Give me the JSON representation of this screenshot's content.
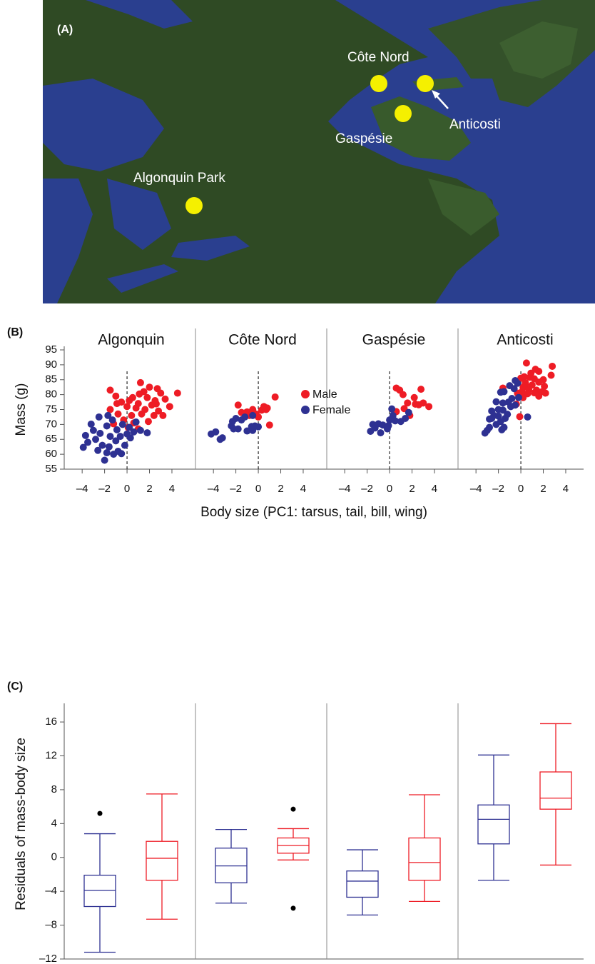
{
  "map": {
    "panel_label": "(A)",
    "sites": [
      {
        "label": "Côte Nord"
      },
      {
        "label": "Anticosti"
      },
      {
        "label": "Gaspésie"
      },
      {
        "label": "Algonquin Park"
      }
    ]
  },
  "chart_data": [
    {
      "type": "scatter",
      "panel_label": "(B)",
      "ylabel": "Mass (g)",
      "xlabel": "Body size (PC1: tarsus, tail, bill, wing)",
      "ylim": [
        55,
        95
      ],
      "yticks": [
        55,
        60,
        65,
        70,
        75,
        80,
        85,
        90,
        95
      ],
      "xlim": [
        -5.6,
        6.1
      ],
      "xticks": [
        {
          "value": -4,
          "label": "–4"
        },
        {
          "value": -2,
          "label": "–2"
        },
        0,
        2,
        4
      ],
      "ref_x": 0,
      "series": [
        {
          "name": "Male",
          "color": "#ee1c25"
        },
        {
          "name": "Female",
          "color": "#2e3192"
        }
      ],
      "facets": [
        {
          "title": "Algonquin",
          "groups": [
            {
              "x": [
                1.2,
                2.0,
                2.7,
                1.5,
                3.0,
                4.5,
                -1.5,
                -1,
                0.5,
                1.8,
                2.5,
                3.4,
                -0.5,
                0.2,
                1.0,
                2.2,
                3.8,
                -1.5,
                0,
                0.8,
                1.6,
                2.8,
                -0.8,
                0.4,
                1.3,
                2.4,
                3.2,
                -0.3,
                0.6,
                1.9,
                -1.2,
                0.1,
                1.0,
                2.6,
                1.1,
                -0.9
              ],
              "values": [
                84,
                82.5,
                82,
                81,
                80.5,
                80.5,
                81.5,
                79.5,
                79,
                79,
                78,
                78.5,
                77.5,
                78,
                77,
                76.5,
                76,
                75,
                76,
                75.5,
                75,
                74.5,
                73.5,
                73,
                73.5,
                73,
                73,
                71.5,
                70.5,
                71,
                70.2,
                69,
                68.5,
                76.9,
                80.2,
                77
              ]
            },
            {
              "x": [
                -3.9,
                -3.5,
                -3.7,
                -3.0,
                -2.5,
                -2.8,
                -2.2,
                -2.0,
                -1.8,
                -1.6,
                -1.2,
                -0.8,
                -0.5,
                -2.4,
                -1.8,
                -1.5,
                -1.0,
                -0.6,
                -0.2,
                0.3,
                0.6,
                1.2,
                1.8,
                -1.3,
                -0.4,
                0.2,
                0.8,
                -1.7,
                -0.9,
                -2.6,
                -3.2,
                0.0
              ],
              "values": [
                62.3,
                64,
                66.3,
                68,
                72.5,
                65,
                63,
                58,
                60.5,
                62.5,
                60,
                61,
                60.2,
                67,
                69.5,
                66,
                64.5,
                66,
                63,
                65.5,
                67.5,
                68,
                67.2,
                71.5,
                70,
                69,
                70.8,
                73,
                68.2,
                61.3,
                70.1,
                66.8
              ]
            }
          ]
        },
        {
          "title": "Côte Nord",
          "groups": [
            {
              "x": [
                -1.8,
                -1.5,
                -1.0,
                -0.8,
                -0.5,
                -0.2,
                0.3,
                0.5,
                0.8,
                0.7,
                1.5,
                1.0,
                0.0,
                -1.2
              ],
              "values": [
                76.5,
                74,
                74.2,
                73,
                75,
                73.5,
                74.8,
                76,
                75.5,
                75,
                79.2,
                69.8,
                72.5,
                73.8
              ]
            },
            {
              "x": [
                -4.2,
                -3.8,
                -3.2,
                -3.4,
                -2.4,
                -2.2,
                -1.8,
                -2.3,
                -2.0,
                -1.5,
                -1.2,
                -1.0,
                -0.5,
                -0.3,
                0.0,
                -0.6,
                -0.5
              ],
              "values": [
                66.8,
                67.5,
                65.5,
                65,
                69.5,
                68.5,
                68.5,
                71,
                72,
                71.5,
                72.5,
                67.8,
                68,
                69.5,
                69.2,
                69.3,
                73
              ]
            }
          ]
        },
        {
          "title": "Gaspésie",
          "groups": [
            {
              "x": [
                0.6,
                0.9,
                2.8,
                1.2,
                2.2,
                1.6,
                2.3,
                2.6,
                3.0,
                3.5,
                1.3,
                0.6,
                1.8
              ],
              "values": [
                82.2,
                81.5,
                81.8,
                80,
                79,
                77.2,
                76.8,
                76.6,
                77.2,
                76,
                75.3,
                74.3,
                73
              ]
            },
            {
              "x": [
                -1.7,
                -1.3,
                -1.5,
                -1.0,
                -0.8,
                -0.6,
                -0.2,
                0.0,
                0.2,
                0.3,
                0.5,
                1.0,
                1.4,
                1.7,
                -0.1
              ],
              "values": [
                67.7,
                68.8,
                70,
                70.2,
                67.2,
                69.8,
                68.5,
                71.5,
                75.2,
                73,
                71.2,
                71,
                72,
                74,
                69.6
              ]
            }
          ]
        },
        {
          "title": "Anticosti",
          "groups": [
            {
              "x": [
                0.5,
                2.8,
                1.3,
                1.6,
                0.9,
                2.7,
                0.3,
                0.8,
                1.2,
                0,
                2.0,
                0.4,
                1.6,
                1.0,
                2.1,
                0.2,
                0.7,
                1.4,
                1.9,
                2.2,
                0.1,
                0.6,
                1.2,
                -0.3,
                1.6,
                -1.6,
                0.2,
                -0.4,
                -0.1,
                0.4
              ],
              "values": [
                90.6,
                89.5,
                88.5,
                87.8,
                87.2,
                86.5,
                86,
                85.8,
                85.3,
                85.5,
                85,
                84,
                84.2,
                83.2,
                82.8,
                82.5,
                81.8,
                81.5,
                81,
                80.5,
                81,
                80.3,
                80.6,
                80.5,
                79.5,
                82.2,
                79,
                76.8,
                72.6,
                83.5
              ]
            },
            {
              "x": [
                -0.5,
                -0.3,
                -0.6,
                -1.0,
                -1.5,
                -1.8,
                -0.2,
                -0.8,
                -1.1,
                -1.6,
                -2.2,
                -0.5,
                -0.9,
                -2.0,
                -2.6,
                -1.6,
                -2.4,
                -1.2,
                -2.0,
                -1.4,
                -2.8,
                -1.8,
                -2.2,
                -1.5,
                -2.8,
                -3.0,
                -3.2,
                -1.7,
                0.6,
                -2.6
              ],
              "values": [
                84.7,
                83.8,
                82,
                83,
                81,
                80.8,
                79,
                78.7,
                77.5,
                77.2,
                77.6,
                76.5,
                76,
                75,
                74.5,
                74.8,
                73,
                73.4,
                72.8,
                72,
                71.8,
                71,
                70,
                69,
                69,
                68,
                67.1,
                68.2,
                72.5,
                72
              ]
            }
          ]
        }
      ]
    },
    {
      "type": "box",
      "panel_label": "(C)",
      "ylabel": "Residuals of mass-body size",
      "ylim": [
        -12,
        18.2
      ],
      "yticks": [
        {
          "value": -12,
          "label": "–12"
        },
        {
          "value": -8,
          "label": "–8"
        },
        {
          "value": -4,
          "label": "–4"
        },
        0,
        4,
        8,
        12,
        16
      ],
      "series": [
        {
          "color": "#2e3192",
          "boxes": [
            {
              "low": -11.2,
              "q1": -5.8,
              "median": -3.9,
              "q3": -2.1,
              "high": 2.8,
              "fliers": [
                5.2
              ]
            },
            {
              "low": -5.4,
              "q1": -3.0,
              "median": -1.0,
              "q3": 1.1,
              "high": 3.3,
              "fliers": []
            },
            {
              "low": -6.8,
              "q1": -4.7,
              "median": -2.8,
              "q3": -1.6,
              "high": 0.9,
              "fliers": []
            },
            {
              "low": -2.7,
              "q1": 1.6,
              "median": 4.5,
              "q3": 6.2,
              "high": 12.1,
              "fliers": []
            }
          ]
        },
        {
          "color": "#ee1c25",
          "boxes": [
            {
              "low": -7.3,
              "q1": -2.7,
              "median": -0.1,
              "q3": 1.9,
              "high": 7.5,
              "fliers": []
            },
            {
              "low": -0.3,
              "q1": 0.5,
              "median": 1.4,
              "q3": 2.3,
              "high": 3.4,
              "fliers": [
                5.7,
                -6.0
              ]
            },
            {
              "low": -5.2,
              "q1": -2.7,
              "median": -0.6,
              "q3": 2.3,
              "high": 7.4,
              "fliers": []
            },
            {
              "low": -0.9,
              "q1": 5.7,
              "median": 7.0,
              "q3": 10.1,
              "high": 15.8,
              "fliers": []
            }
          ]
        }
      ]
    }
  ]
}
